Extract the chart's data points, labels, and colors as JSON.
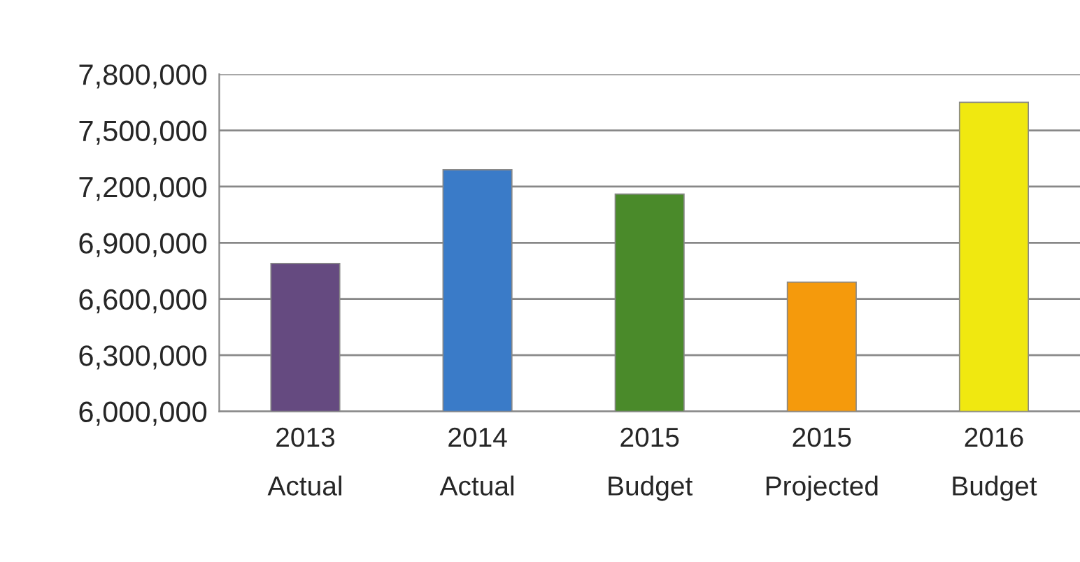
{
  "chart_data": {
    "type": "bar",
    "categories": [
      "2013\n\nActual",
      "2014\n\nActual",
      "2015\n\nBudget",
      "2015\n\nProjected",
      "2016\n\nBudget"
    ],
    "values": [
      6790000,
      7290000,
      7160000,
      6690000,
      7650000
    ],
    "colors": [
      "#654a80",
      "#3a7bc8",
      "#4a8a2a",
      "#f59a0c",
      "#f0e810"
    ],
    "ylim": [
      6000000,
      7800000
    ],
    "yticks": [
      {
        "value": 6000000,
        "label": "6,000,000"
      },
      {
        "value": 6300000,
        "label": "6,300,000"
      },
      {
        "value": 6600000,
        "label": "6,600,000"
      },
      {
        "value": 6900000,
        "label": "6,900,000"
      },
      {
        "value": 7200000,
        "label": "7,200,000"
      },
      {
        "value": 7500000,
        "label": "7,500,000"
      },
      {
        "value": 7800000,
        "label": "7,800,000"
      }
    ],
    "grid": "y",
    "legend": false
  }
}
